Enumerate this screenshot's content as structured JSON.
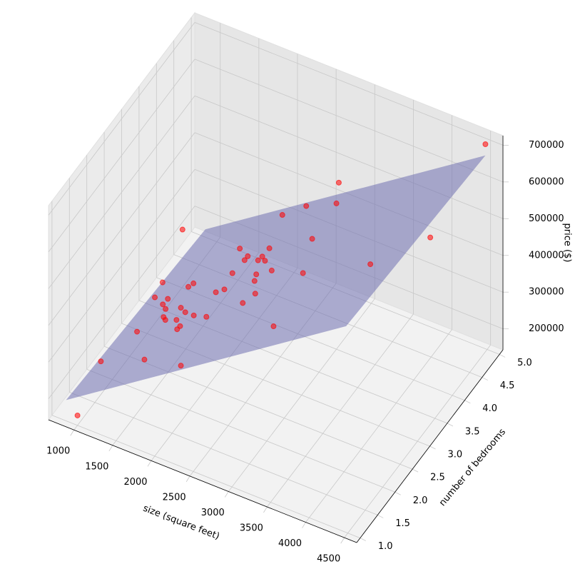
{
  "chart_data": {
    "type": "scatter3d",
    "xlabel": "size (square feet)",
    "ylabel": "number of bedrooms",
    "zlabel": "price ($)",
    "xlim": [
      670,
      4660
    ],
    "ylim": [
      0.9,
      5.1
    ],
    "zlim": [
      143000,
      726000
    ],
    "xticks": [
      1000,
      1500,
      2000,
      2500,
      3000,
      3500,
      4000,
      4500
    ],
    "yticks": [
      {
        "value": 1,
        "label": "1.0"
      },
      1.5,
      {
        "value": 2,
        "label": "2.0"
      },
      2.5,
      {
        "value": 3,
        "label": "3.0"
      },
      3.5,
      {
        "value": 4,
        "label": "4.0"
      },
      4.5,
      {
        "value": 5,
        "label": "5.0"
      }
    ],
    "zticks": [
      200000,
      300000,
      400000,
      500000,
      600000,
      700000
    ],
    "grid": true,
    "surface": {
      "color": "#7070b0",
      "x": [
        852,
        4478
      ],
      "y": [
        1,
        5
      ],
      "z": [
        [
          199467,
          164515
        ],
        [
          704242,
          669290
        ]
      ]
    },
    "series": [
      {
        "color": "#ff0000",
        "x": [
          2104,
          1600,
          2400,
          1416,
          3000,
          1985,
          1534,
          1427,
          1380,
          1494,
          1940,
          2000,
          1890,
          4478,
          1268,
          2300,
          1320,
          1236,
          2609,
          3031,
          1767,
          1888,
          1604,
          1962,
          3890,
          1100,
          1458,
          2526,
          2200,
          2637,
          1839,
          1000,
          2040,
          3137,
          1811,
          1437,
          1239,
          2132,
          4215,
          2162,
          1664,
          2238,
          2567,
          1200,
          852,
          1852,
          1203
        ],
        "y": [
          3,
          3,
          3,
          2,
          4,
          4,
          3,
          3,
          3,
          3,
          4,
          3,
          3,
          5,
          3,
          4,
          2,
          3,
          4,
          4,
          3,
          2,
          3,
          4,
          3,
          3,
          3,
          3,
          3,
          3,
          2,
          1,
          4,
          3,
          4,
          3,
          3,
          4,
          4,
          4,
          2,
          3,
          4,
          3,
          2,
          4,
          3
        ],
        "z": [
          399900,
          329900,
          369000,
          232000,
          539900,
          299900,
          314900,
          198999,
          212000,
          242500,
          239999,
          347000,
          329999,
          699900,
          259900,
          449900,
          299900,
          199900,
          499998,
          599000,
          252900,
          255000,
          242900,
          259900,
          573900,
          249900,
          464500,
          469000,
          475000,
          299900,
          349900,
          169900,
          314900,
          579900,
          285900,
          249900,
          229900,
          345000,
          549000,
          287000,
          368500,
          329900,
          314000,
          299000,
          179900,
          299900,
          239500
        ]
      }
    ]
  }
}
